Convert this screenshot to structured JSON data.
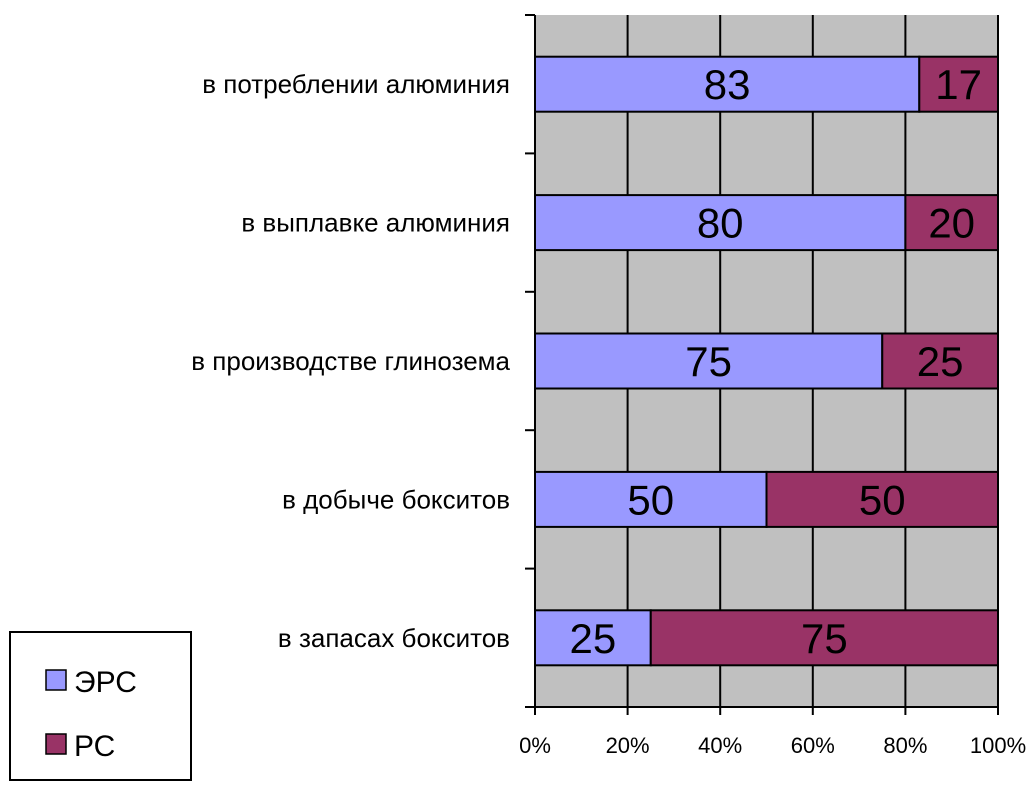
{
  "chart_data": {
    "type": "bar",
    "orientation": "horizontal",
    "stacked": "percent",
    "categories": [
      "в потреблении алюминия",
      "в выплавке алюминия",
      "в производстве глинозема",
      "в добыче бокситов",
      "в запасах бокситов"
    ],
    "series": [
      {
        "name": "ЭРС",
        "values": [
          83,
          80,
          75,
          50,
          25
        ],
        "color": "#9999ff"
      },
      {
        "name": "РС",
        "values": [
          17,
          20,
          25,
          50,
          75
        ],
        "color": "#993366"
      }
    ],
    "xlim": [
      0,
      100
    ],
    "x_ticks": [
      "0%",
      "20%",
      "40%",
      "60%",
      "80%",
      "100%"
    ],
    "title": "",
    "xlabel": "",
    "ylabel": "",
    "grid": true,
    "plot_background": "#c0c0c0",
    "legend_position": "bottom-left",
    "data_labels": true
  }
}
